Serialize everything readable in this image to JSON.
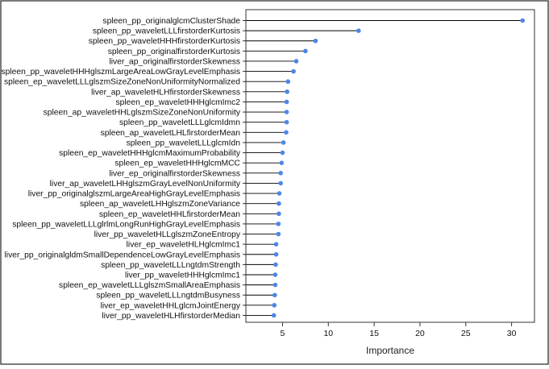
{
  "chart_data": {
    "type": "lollipop",
    "orientation": "horizontal",
    "xlabel": "Importance",
    "ylabel": "",
    "title": "",
    "xlim": [
      1.0,
      32.5
    ],
    "xticks": [
      5,
      10,
      15,
      20,
      25,
      30
    ],
    "grid": false,
    "legend": "none",
    "colors": {
      "point": "#4d86e8",
      "stem": "#000000",
      "axis": "#333333"
    },
    "series": [
      {
        "categories": [
          "spleen_pp_originalglcmClusterShade",
          "spleen_pp_waveletLLLfirstorderKurtosis",
          "spleen_pp_waveletHHHfirstorderKurtosis",
          "spleen_pp_originalfirstorderKurtosis",
          "liver_ap_originalfirstorderSkewness",
          "spleen_pp_waveletHHHglszmLargeAreaLowGrayLevelEmphasis",
          "spleen_ep_waveletLLLglszmSizeZoneNonUniformityNormalized",
          "liver_ap_waveletHLHfirstorderSkewness",
          "spleen_ep_waveletHHHglcmImc2",
          "spleen_ap_waveletHHLglszmSizeZoneNonUniformity",
          "spleen_pp_waveletLLLglcmIdmn",
          "spleen_ap_waveletLHLfirstorderMean",
          "spleen_pp_waveletLLLglcmIdn",
          "spleen_ep_waveletHHHglcmMaximumProbability",
          "spleen_ep_waveletHHHglcmMCC",
          "liver_ep_originalfirstorderSkewness",
          "liver_ap_waveletLHHglszmGrayLevelNonUniformity",
          "liver_pp_originalglszmLargeAreaHighGrayLevelEmphasis",
          "spleen_ap_waveletLHHglszmZoneVariance",
          "spleen_ep_waveletHHLfirstorderMean",
          "spleen_pp_waveletLLLglrlmLongRunHighGrayLevelEmphasis",
          "liver_pp_waveletHLLglszmZoneEntropy",
          "liver_ep_waveletHLHglcmImc1",
          "liver_pp_originalgldmSmallDependenceLowGrayLevelEmphasis",
          "spleen_pp_waveletLLLngtdmStrength",
          "liver_pp_waveletHHHglcmImc1",
          "spleen_ep_waveletLLLglszmSmallAreaEmphasis",
          "spleen_pp_waveletLLLngtdmBusyness",
          "liver_ep_waveletHHLglcmJointEnergy",
          "liver_pp_waveletHLHfirstorderMedian"
        ],
        "values": [
          31.2,
          13.3,
          8.6,
          7.5,
          6.5,
          6.2,
          5.6,
          5.5,
          5.45,
          5.45,
          5.45,
          5.4,
          5.1,
          5.0,
          4.9,
          4.8,
          4.8,
          4.65,
          4.6,
          4.6,
          4.55,
          4.55,
          4.3,
          4.3,
          4.25,
          4.2,
          4.2,
          4.15,
          4.1,
          4.05
        ]
      }
    ]
  }
}
